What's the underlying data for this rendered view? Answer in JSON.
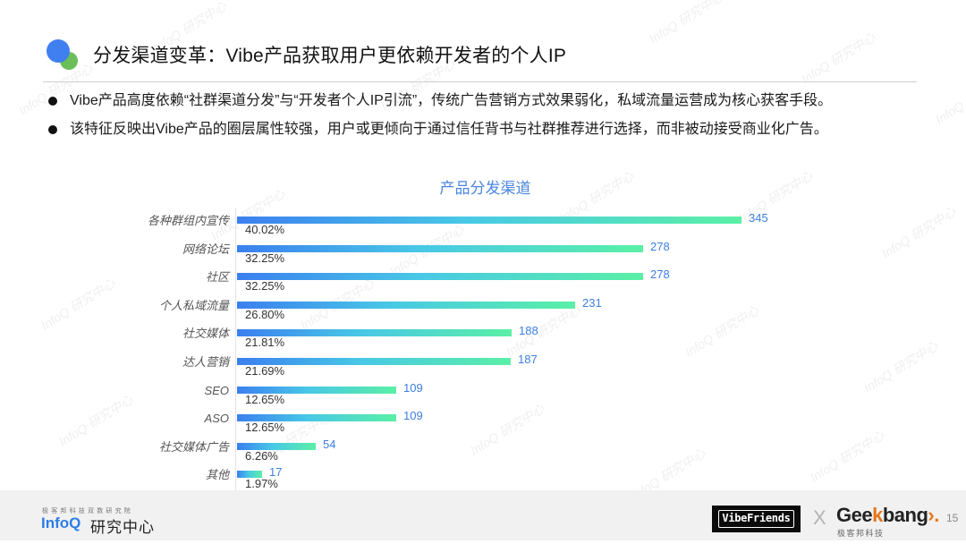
{
  "header": {
    "title": "分发渠道变革：Vibe产品获取用户更依赖开发者的个人IP",
    "icon": "two-circles-icon",
    "icon_colors": {
      "blue": "#3f7ff0",
      "green": "#6bbf59"
    }
  },
  "bullets": [
    "Vibe产品高度依赖“社群渠道分发”与“开发者个人IP引流”，传统广告营销方式效果弱化，私域流量运营成为核心获客手段。",
    "该特征反映出Vibe产品的圈层属性较强，用户或更倾向于通过信任背书与社群推荐进行选择，而非被动接受商业化广告。"
  ],
  "chart_data": {
    "type": "bar",
    "orientation": "horizontal",
    "title": "产品分发渠道",
    "xlabel": "",
    "ylabel": "",
    "categories": [
      "各种群组内宣传",
      "网络论坛",
      "社区",
      "个人私域流量",
      "社交媒体",
      "达人营销",
      "SEO",
      "ASO",
      "社交媒体广告",
      "其他"
    ],
    "values": [
      345,
      278,
      278,
      231,
      188,
      187,
      109,
      109,
      54,
      17
    ],
    "percentages": [
      "40.02%",
      "32.25%",
      "32.25%",
      "26.80%",
      "21.81%",
      "21.69%",
      "12.65%",
      "12.65%",
      "6.26%",
      "1.97%"
    ],
    "value_labels": [
      "345",
      "278",
      "278",
      "231",
      "188",
      "187",
      "109",
      "109",
      "54",
      "17"
    ],
    "xlim": [
      0,
      345
    ],
    "grid": false,
    "legend": null,
    "bar_gradient": [
      "#3b7fef",
      "#48c8e6",
      "#5af0a6"
    ],
    "value_label_color": "#3c7fe0",
    "title_color": "#4a86e0"
  },
  "footer": {
    "infoq_tagline": "极客邦科技双数研究院",
    "infoq_logo": "InfoQ",
    "infoq_cn": "研究中心",
    "vibefriends_logo": "VibeFriends",
    "x_mark": "X",
    "geekbang_logo_parts": [
      "Gee",
      "k",
      "bang",
      "›."
    ],
    "geekbang_sub": "极客邦科技",
    "page_number": "15"
  },
  "watermark_text": "InfoQ 研究中心"
}
